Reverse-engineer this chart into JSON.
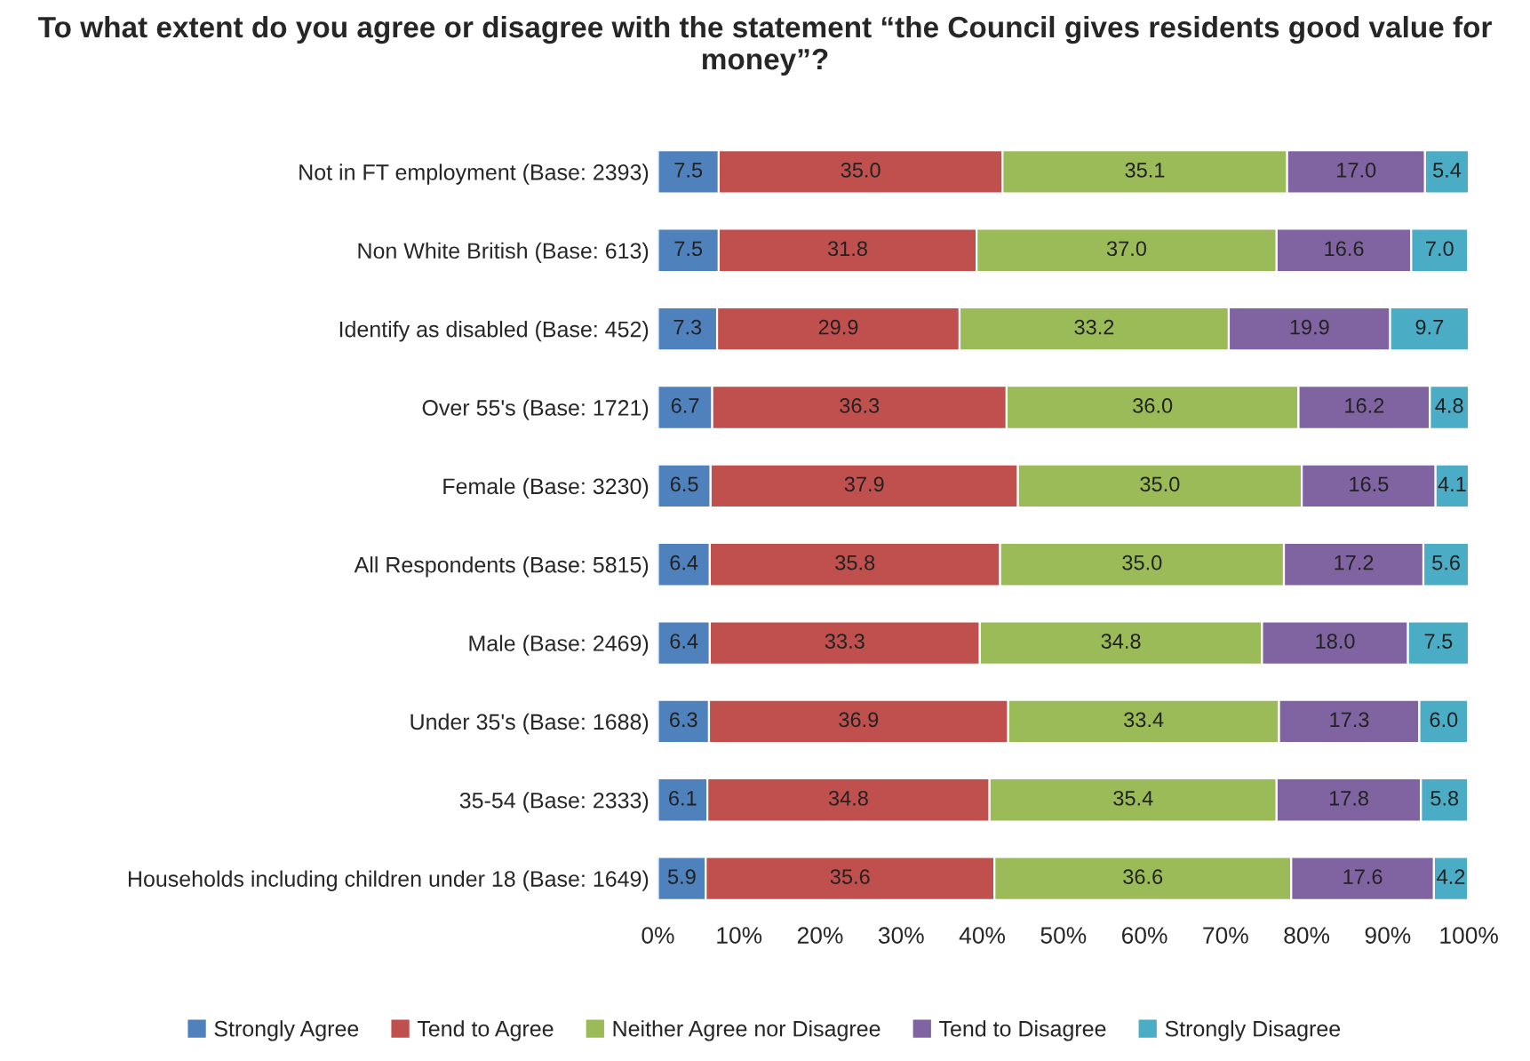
{
  "chart_data": {
    "type": "bar",
    "orientation": "horizontal",
    "stacked": true,
    "title": "To what extent do you agree or disagree with the statement “the Council gives residents good value for money”?",
    "categories": [
      "Not in FT employment (Base: 2393)",
      "Non White British (Base: 613)",
      "Identify as disabled (Base: 452)",
      "Over 55's (Base: 1721)",
      "Female (Base: 3230)",
      "All Respondents (Base: 5815)",
      "Male (Base: 2469)",
      "Under 35's (Base: 1688)",
      "35-54 (Base: 2333)",
      "Households including children under 18 (Base: 1649)"
    ],
    "series": [
      {
        "name": "Strongly Agree",
        "color": "#4f81bd",
        "values": [
          7.5,
          7.5,
          7.3,
          6.7,
          6.5,
          6.4,
          6.4,
          6.3,
          6.1,
          5.9
        ],
        "value_labels": [
          "7.5",
          "7.5",
          "7.3",
          "6.7",
          "6.5",
          "6.4",
          "6.4",
          "6.3",
          "6.1",
          "5.9"
        ]
      },
      {
        "name": "Tend to Agree",
        "color": "#c0504d",
        "values": [
          35.0,
          31.8,
          29.9,
          36.3,
          37.9,
          35.8,
          33.3,
          36.9,
          34.8,
          35.6
        ],
        "value_labels": [
          "35.0",
          "31.8",
          "29.9",
          "36.3",
          "37.9",
          "35.8",
          "33.3",
          "36.9",
          "34.8",
          "35.6"
        ]
      },
      {
        "name": "Neither Agree nor Disagree",
        "color": "#9bbb59",
        "values": [
          35.1,
          37.0,
          33.2,
          36.0,
          35.0,
          35.0,
          34.8,
          33.4,
          35.4,
          36.6
        ],
        "value_labels": [
          "35.1",
          "37.0",
          "33.2",
          "36.0",
          "35.0",
          "35.0",
          "34.8",
          "33.4",
          "35.4",
          "36.6"
        ]
      },
      {
        "name": "Tend to Disagree",
        "color": "#8064a2",
        "values": [
          17.0,
          16.6,
          19.9,
          16.2,
          16.5,
          17.2,
          18.0,
          17.3,
          17.8,
          17.6
        ],
        "value_labels": [
          "17.0",
          "16.6",
          "19.9",
          "16.2",
          "16.5",
          "17.2",
          "18.0",
          "17.3",
          "17.8",
          "17.6"
        ]
      },
      {
        "name": "Strongly Disagree",
        "color": "#4bacc6",
        "values": [
          5.4,
          7.0,
          9.7,
          4.8,
          4.1,
          5.6,
          7.5,
          6.0,
          5.8,
          4.2
        ],
        "value_labels": [
          "5.4",
          "7.0",
          "9.7",
          "4.8",
          "4.1",
          "5.6",
          "7.5",
          "6.0",
          "5.8",
          "4.2"
        ]
      }
    ],
    "xlim": [
      0,
      100
    ],
    "xticks": [
      {
        "value": 0,
        "label": "0%"
      },
      {
        "value": 10,
        "label": "10%"
      },
      {
        "value": 20,
        "label": "20%"
      },
      {
        "value": 30,
        "label": "30%"
      },
      {
        "value": 40,
        "label": "40%"
      },
      {
        "value": 50,
        "label": "50%"
      },
      {
        "value": 60,
        "label": "60%"
      },
      {
        "value": 70,
        "label": "70%"
      },
      {
        "value": 80,
        "label": "80%"
      },
      {
        "value": 90,
        "label": "90%"
      },
      {
        "value": 100,
        "label": "100%"
      }
    ],
    "grid": false,
    "legend": "bottom"
  }
}
